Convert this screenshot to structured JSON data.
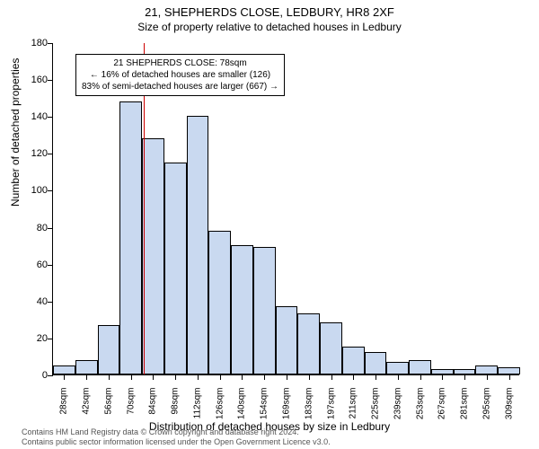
{
  "titles": {
    "main": "21, SHEPHERDS CLOSE, LEDBURY, HR8 2XF",
    "sub": "Size of property relative to detached houses in Ledbury"
  },
  "axes": {
    "y_title": "Number of detached properties",
    "x_title": "Distribution of detached houses by size in Ledbury",
    "ylim": [
      0,
      180
    ],
    "y_ticks": [
      0,
      20,
      40,
      60,
      80,
      100,
      120,
      140,
      160,
      180
    ],
    "x_labels": [
      "28sqm",
      "42sqm",
      "56sqm",
      "70sqm",
      "84sqm",
      "98sqm",
      "112sqm",
      "126sqm",
      "140sqm",
      "154sqm",
      "169sqm",
      "183sqm",
      "197sqm",
      "211sqm",
      "225sqm",
      "239sqm",
      "253sqm",
      "267sqm",
      "281sqm",
      "295sqm",
      "309sqm"
    ]
  },
  "histogram": {
    "type": "histogram",
    "title_fontsize": 13,
    "sub_fontsize": 12,
    "label_fontsize": 11,
    "tick_fontsize": 10,
    "bar_fill": "#c9d9f0",
    "bar_border": "#000000",
    "background": "#ffffff",
    "values": [
      5,
      8,
      27,
      148,
      128,
      115,
      140,
      78,
      70,
      69,
      37,
      33,
      28,
      15,
      12,
      7,
      8,
      3,
      3,
      5,
      4
    ]
  },
  "reference_line": {
    "position_sqm": 78,
    "color": "#cc0000",
    "width": 1
  },
  "annotation": {
    "line1": "21 SHEPHERDS CLOSE: 78sqm",
    "line2": "← 16% of detached houses are smaller (126)",
    "line3": "83% of semi-detached houses are larger (667) →",
    "border_color": "#000000",
    "background": "#ffffff"
  },
  "footer": {
    "line1": "Contains HM Land Registry data © Crown copyright and database right 2024.",
    "line2": "Contains public sector information licensed under the Open Government Licence v3.0."
  }
}
